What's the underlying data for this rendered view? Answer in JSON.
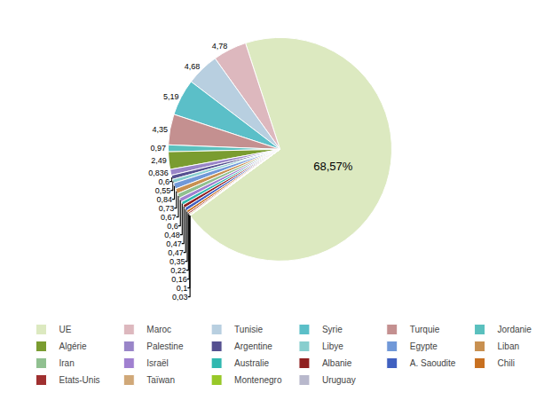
{
  "chart_data": {
    "type": "pie",
    "categories": [
      "UE",
      "Maroc",
      "Tunisie",
      "Syrie",
      "Turquie",
      "Jordanie",
      "Algérie",
      "Palestine",
      "Argentine",
      "Libye",
      "Egypte",
      "Liban",
      "Iran",
      "Israël",
      "Australie",
      "Albanie",
      "A. Saoudite",
      "Chili",
      "Etats-Unis",
      "Taïwan",
      "Montenegro",
      "Uruguay"
    ],
    "values": [
      68.57,
      4.78,
      4.68,
      5.19,
      4.35,
      0.97,
      2.49,
      0.836,
      0.6,
      0.55,
      0.84,
      0.73,
      0.67,
      0.6,
      0.48,
      0.47,
      0.47,
      0.35,
      0.22,
      0.16,
      0.1,
      0.03
    ],
    "colors": [
      "#dce9c0",
      "#ddb8be",
      "#b8cfe0",
      "#5bbfc8",
      "#c49090",
      "#5ac0be",
      "#7a9c30",
      "#9985c8",
      "#555090",
      "#88cece",
      "#7098d8",
      "#c89050",
      "#90c090",
      "#a080d0",
      "#30b8b0",
      "#902020",
      "#4060c0",
      "#c87020",
      "#a03030",
      "#d0a878",
      "#98c828",
      "#b8b8cc"
    ],
    "data_labels": true,
    "value_labels": [
      "68,57%",
      "4,78",
      "4,68",
      "5,19",
      "4,35",
      "0,97",
      "2,49",
      "0,836",
      "0,6",
      "0,55",
      "0,84",
      "0,73",
      "0,67",
      "0,6",
      "0,48",
      "0,47",
      "0,47",
      "0,35",
      "0,22",
      "0,16",
      "0,1",
      "0,03"
    ],
    "legend": "bottom"
  }
}
